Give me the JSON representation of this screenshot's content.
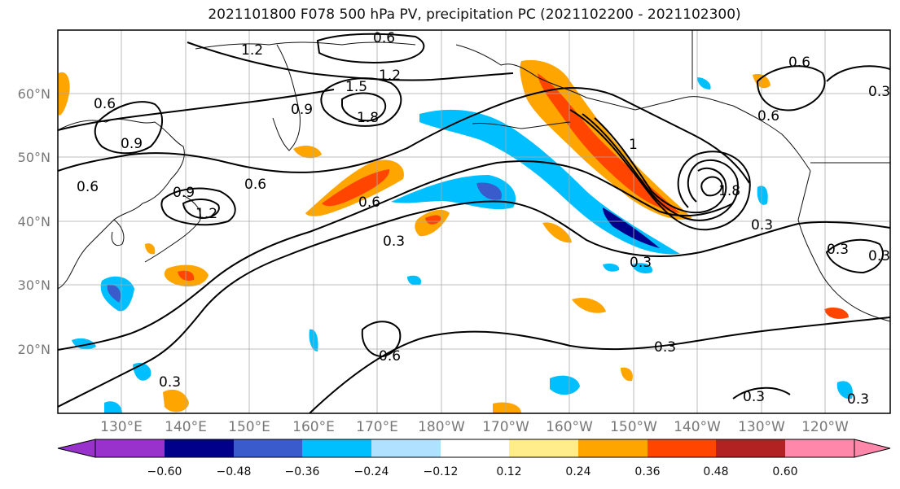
{
  "title": "2021101800 F078 500 hPa PV, precipitation PC (2021102200 - 2021102300)",
  "map": {
    "lat_labels": [
      "60°N",
      "50°N",
      "40°N",
      "30°N",
      "20°N"
    ],
    "lon_labels": [
      "130°E",
      "140°E",
      "150°E",
      "160°E",
      "170°E",
      "180°W",
      "170°W",
      "160°W",
      "150°W",
      "140°W",
      "130°W",
      "120°W"
    ],
    "pv_contour_labels": [
      "1.2",
      "0.6",
      "1.2",
      "1.5",
      "1.8",
      "0.9",
      "0.6",
      "0.9",
      "0.6",
      "0.9",
      "1.2",
      "0.6",
      "0.6",
      "0.3",
      "1",
      "1.8",
      "0.6",
      "0.6",
      "0.3",
      "0.3",
      "0.3",
      "0.3",
      "0.3",
      "0.6",
      "0.3",
      "0.3",
      "0.3",
      "0.3"
    ]
  },
  "colorbar": {
    "ticks": [
      "−0.60",
      "−0.48",
      "−0.36",
      "−0.24",
      "−0.12",
      "0.12",
      "0.24",
      "0.36",
      "0.48",
      "0.60"
    ],
    "colors": [
      "#9932cc",
      "#00008b",
      "#3a5bcc",
      "#00bfff",
      "#b0e2ff",
      "#ffffff",
      "#ffec8b",
      "#ffa500",
      "#ff4500",
      "#b22222",
      "#ff88aa"
    ]
  }
}
